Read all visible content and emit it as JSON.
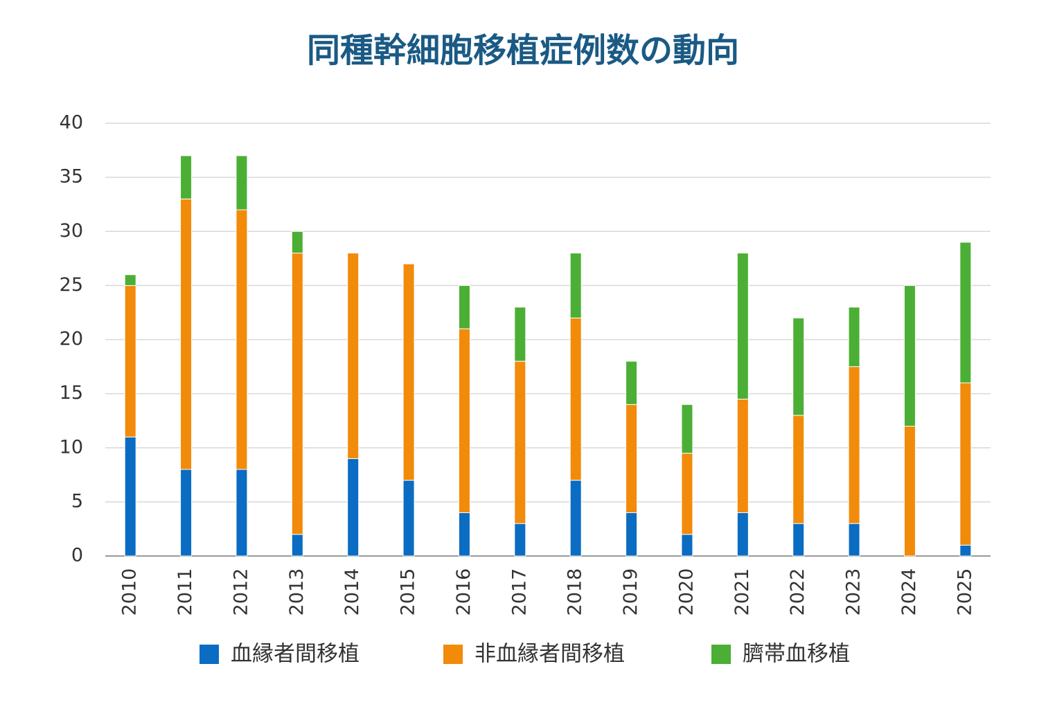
{
  "chart_data": {
    "type": "stacked_bar",
    "title": "同種幹細胞移植症例数の動向",
    "categories": [
      "2010",
      "2011",
      "2012",
      "2013",
      "2014",
      "2015",
      "2016",
      "2017",
      "2018",
      "2019",
      "2020",
      "2021",
      "2022",
      "2023",
      "2024",
      "2025"
    ],
    "series": [
      {
        "name": "血縁者間移植",
        "color": "#0a6cc2",
        "values": [
          11,
          8,
          8,
          2,
          9,
          7,
          4,
          3,
          7,
          4,
          2,
          4,
          3,
          3,
          0,
          1
        ]
      },
      {
        "name": "非血縁者間移植",
        "color": "#f28a0a",
        "values": [
          14,
          25,
          24,
          26,
          19,
          20,
          17,
          15,
          15,
          10,
          7.5,
          10.5,
          10,
          14.5,
          12,
          15
        ]
      },
      {
        "name": "臍帯血移植",
        "color": "#4caf35",
        "values": [
          1,
          4,
          5,
          2,
          0,
          0,
          4,
          5,
          6,
          4,
          4.5,
          13.5,
          9,
          5.5,
          13,
          13
        ]
      }
    ],
    "ylim": [
      0,
      40
    ],
    "yticks": [
      0,
      5,
      10,
      15,
      20,
      25,
      30,
      35,
      40
    ],
    "grid": true,
    "legend": "bottom"
  }
}
